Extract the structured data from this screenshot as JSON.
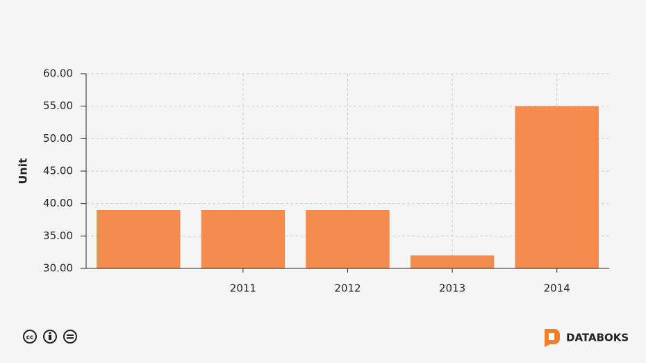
{
  "chart_data": {
    "type": "bar",
    "y_label": "Unit",
    "categories": [
      null,
      "2011",
      "2012",
      "2013",
      "2014"
    ],
    "values": [
      39,
      39,
      39,
      32,
      55
    ],
    "color": "#f48c4f",
    "ylim": [
      30,
      60
    ],
    "yticks": [
      {
        "value": 30,
        "label": "30.00"
      },
      {
        "value": 35,
        "label": "35.00"
      },
      {
        "value": 40,
        "label": "40.00"
      },
      {
        "value": 45,
        "label": "45.00"
      },
      {
        "value": 50,
        "label": "50.00"
      },
      {
        "value": 55,
        "label": "55.00"
      },
      {
        "value": 60,
        "label": "60.00"
      }
    ],
    "grid": true
  },
  "footer": {
    "brand": "DATABOKS"
  }
}
